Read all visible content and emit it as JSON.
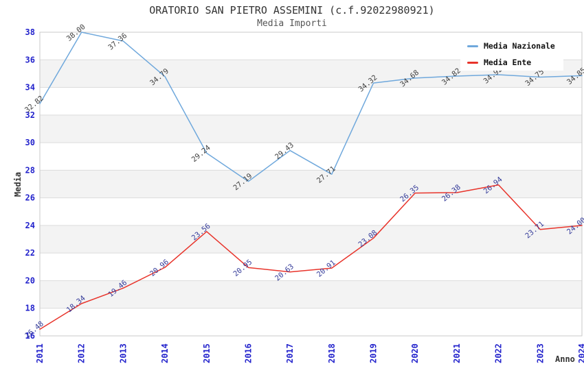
{
  "title": "ORATORIO SAN PIETRO ASSEMINI (c.f.92022980921)",
  "subtitle": "Media Importi",
  "chart_data": {
    "type": "line",
    "title": "ORATORIO SAN PIETRO ASSEMINI (c.f.92022980921)",
    "subtitle": "Media Importi",
    "xlabel": "Anno",
    "ylabel": "Media",
    "x": [
      2011,
      2012,
      2013,
      2014,
      2015,
      2016,
      2017,
      2018,
      2019,
      2020,
      2021,
      2022,
      2023,
      2024
    ],
    "ylim": [
      16,
      38
    ],
    "ytick_step": 2,
    "grid": "horizontal-gridlines-with-alternating-bands",
    "legend_position": "top-right",
    "series": [
      {
        "name": "Media Nazionale",
        "color": "#6FA8DC",
        "label_color": "#3F3F3F",
        "values": [
          32.82,
          38.0,
          37.36,
          34.79,
          29.24,
          27.19,
          29.43,
          27.71,
          34.32,
          34.68,
          34.82,
          34.92,
          34.75,
          34.85
        ],
        "note": "2022 and 2023 point labels hidden behind legend box; values estimated from line position"
      },
      {
        "name": "Media Ente",
        "color": "#E8332A",
        "label_color": "#333A99",
        "values": [
          16.48,
          18.34,
          19.46,
          20.96,
          23.56,
          20.95,
          20.63,
          20.91,
          23.08,
          26.35,
          26.38,
          26.94,
          23.71,
          24.0
        ]
      }
    ],
    "colors": {
      "band": "#f3f3f3",
      "grid": "#dcdcdc",
      "border": "#c9c9c9",
      "tick_label": "#2323cc",
      "title_text": "#333333"
    }
  },
  "legend": {
    "items": [
      {
        "label": "Media Nazionale",
        "color": "#6FA8DC"
      },
      {
        "label": "Media Ente",
        "color": "#E8332A"
      }
    ]
  }
}
